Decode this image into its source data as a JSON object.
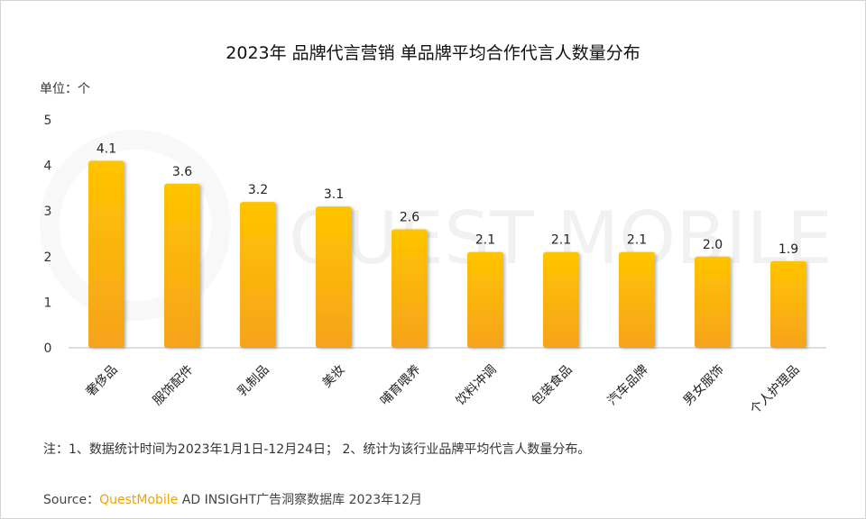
{
  "title": "2023年 品牌代言营销 单品牌平均合作代言人数量分布",
  "unit_label": "单位：个",
  "note": "注：1、数据统计时间为2023年1月1日-12月24日； 2、统计为该行业品牌平均代言人数量分布。",
  "source": {
    "prefix": "Source：",
    "brand": "QuestMobile",
    "rest": " AD INSIGHT广告洞察数据库 2023年12月"
  },
  "watermark": "QUEST MOBILE",
  "colors": {
    "bar_top": "#ffc400",
    "bar_bottom": "#f7a71a",
    "text": "#222222"
  },
  "chart_data": {
    "type": "bar",
    "title": "2023年 品牌代言营销 单品牌平均合作代言人数量分布",
    "ylabel": "单位：个",
    "ylim": [
      0,
      5
    ],
    "yticks": [
      "0",
      "1",
      "2",
      "3",
      "4",
      "5"
    ],
    "categories": [
      "奢侈品",
      "服饰配件",
      "乳制品",
      "美妆",
      "哺育喂养",
      "饮料冲调",
      "包装食品",
      "汽车品牌",
      "男女服饰",
      "个人护理品"
    ],
    "values": [
      4.1,
      3.6,
      3.2,
      3.1,
      2.6,
      2.1,
      2.1,
      2.1,
      2.0,
      1.9
    ],
    "value_labels": [
      "4.1",
      "3.6",
      "3.2",
      "3.1",
      "2.6",
      "2.1",
      "2.1",
      "2.1",
      "2.0",
      "1.9"
    ],
    "grid": false,
    "legend": "none"
  }
}
